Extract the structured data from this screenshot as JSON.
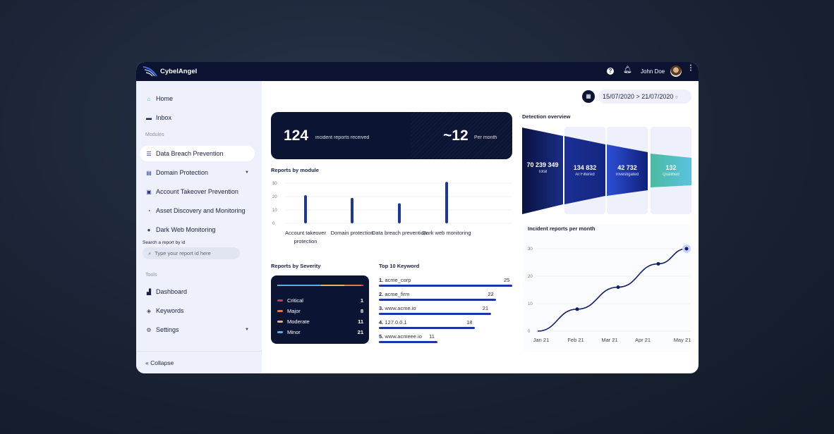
{
  "header": {
    "brand": "CybelAngel",
    "user": "John Doe",
    "icons": [
      "help-icon",
      "bell-icon",
      "avatar",
      "more-vertical-icon"
    ]
  },
  "sidebar": {
    "top": [
      {
        "label": "Home",
        "icon": "home-icon"
      },
      {
        "label": "Inbox",
        "icon": "inbox-icon"
      }
    ],
    "modules_heading": "Modules",
    "modules": [
      {
        "label": "Data Breach Prevention",
        "icon": "server-icon",
        "active": true
      },
      {
        "label": "Domain Protection",
        "icon": "browser-icon",
        "expandable": true
      },
      {
        "label": "Account Takeover Prevention",
        "icon": "id-card-icon"
      },
      {
        "label": "Asset Discovery and Monitoring",
        "icon": "rss-icon"
      },
      {
        "label": "Dark Web Monitoring",
        "icon": "mask-icon"
      }
    ],
    "search_label": "Search a report by id",
    "search_placeholder": "Type your report id here",
    "tools_heading": "Tools",
    "tools": [
      {
        "label": "Dashboard",
        "icon": "chart-icon"
      },
      {
        "label": "Keywords",
        "icon": "tags-icon"
      },
      {
        "label": "Settings",
        "icon": "gear-icon",
        "expandable": true
      }
    ],
    "collapse": "Collapse"
  },
  "date_range": "15/07/2020 > 21/07/2020",
  "summary": {
    "total": "124",
    "total_label": "incident reports received",
    "monthly": "~12",
    "monthly_label": "Per month"
  },
  "reports_by_module": {
    "title": "Reports by module",
    "chart_data": {
      "type": "bar",
      "categories": [
        "Account takeover protection",
        "Domain protection",
        "Data breach prevention",
        "Dark web monitoring"
      ],
      "values": [
        21,
        19,
        15,
        31
      ],
      "yticks": [
        0,
        10,
        20,
        30
      ],
      "ylim": [
        0,
        30
      ],
      "grid": true,
      "color": "#1c36a0"
    }
  },
  "severity": {
    "title": "Reports by Severity",
    "items": [
      {
        "label": "Critical",
        "value": 1,
        "color": "#d1365e"
      },
      {
        "label": "Major",
        "value": 8,
        "color": "#e27a43"
      },
      {
        "label": "Moderate",
        "value": 11,
        "color": "#e9b84a"
      },
      {
        "label": "Minor",
        "value": 21,
        "color": "#5aaee8"
      }
    ]
  },
  "keywords": {
    "title": "Top 10 Keyword",
    "items": [
      {
        "rank": "1.",
        "name": "acme_corp",
        "value": 25
      },
      {
        "rank": "2.",
        "name": "acme_firm",
        "value": 22
      },
      {
        "rank": "3.",
        "name": "www.acme.io",
        "value": 21
      },
      {
        "rank": "4.",
        "name": "127.0.0.1",
        "value": 18
      },
      {
        "rank": "5.",
        "name": "www.acmeee.io",
        "value": 11
      }
    ]
  },
  "detection": {
    "title": "Detection overview",
    "stages": [
      {
        "value": "70 239 349",
        "label": "Total"
      },
      {
        "value": "134 832",
        "label": "AI Filtered"
      },
      {
        "value": "42 732",
        "label": "Investigated"
      },
      {
        "value": "132",
        "label": "Qualified"
      }
    ]
  },
  "incidents": {
    "title": "Incident reports per month",
    "chart_data": {
      "type": "line",
      "categories": [
        "Jan 21",
        "Feb 21",
        "Mar 21",
        "Apr 21",
        "May 21"
      ],
      "values": [
        0,
        8,
        16,
        24.5,
        30
      ],
      "yticks": [
        0,
        10,
        20,
        30
      ],
      "ylim": [
        0,
        30
      ],
      "grid": true,
      "color": "#0f1d6b"
    }
  }
}
